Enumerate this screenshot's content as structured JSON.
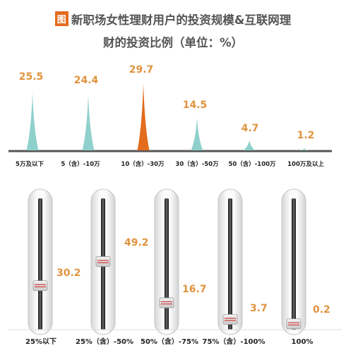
{
  "title": {
    "badge": "图",
    "line1": "新职场女性理财用户的投资规模&互联网理",
    "line2": "财的投资比例（单位：%）"
  },
  "colors": {
    "peak": "#8fd0cc",
    "peak_highlight": "#e36c1d",
    "value_label": "#e0933e",
    "axis": "#555555",
    "text": "#222222"
  },
  "chart_data": [
    {
      "type": "area",
      "subtype": "peak",
      "categories": [
        "5万及以下",
        "5（含）-10万",
        "10（含）-30万",
        "30（含）-50万",
        "50（含）-100万",
        "100万及以上"
      ],
      "values": [
        25.5,
        24.4,
        29.7,
        14.5,
        4.7,
        1.2
      ],
      "highlight_index": 2,
      "unit": "%"
    },
    {
      "type": "bar",
      "subtype": "slider",
      "categories": [
        "25%以下",
        "25%（含）-50%",
        "50%（含）-75%",
        "75%（含）-100%",
        "100%"
      ],
      "values": [
        30.2,
        49.2,
        16.7,
        3.7,
        0.2
      ],
      "ylim": [
        0,
        60
      ],
      "unit": "%"
    }
  ]
}
